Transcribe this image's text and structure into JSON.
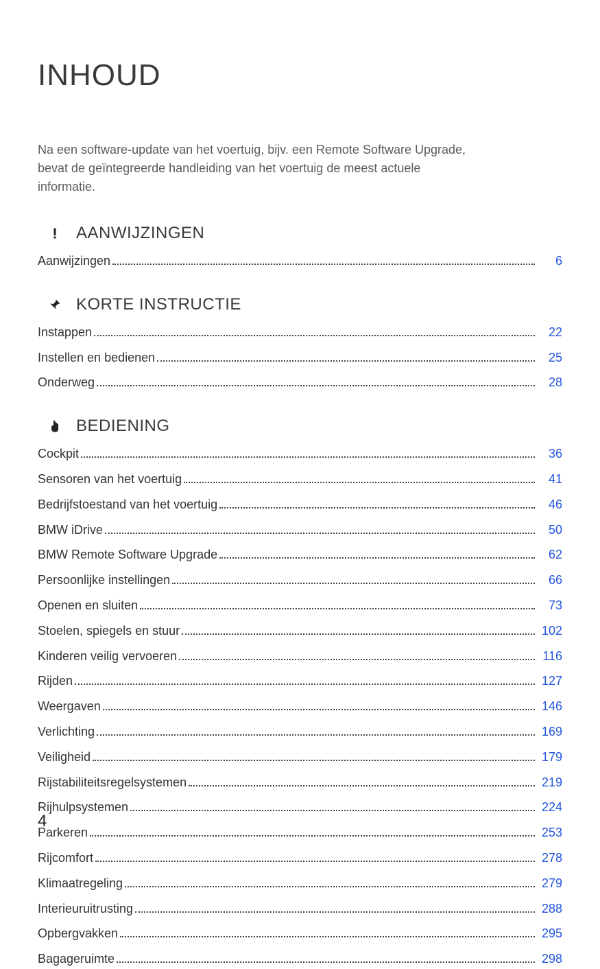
{
  "page_title": "INHOUD",
  "intro_text": "Na een software-update van het voertuig, bijv. een Remote Software Upgrade, bevat de geïntegreerde handleiding van het voertuig de meest actuele informatie.",
  "page_number": "4",
  "link_color": "#2255dd",
  "text_color": "#333333",
  "title_color": "#3a3a3a",
  "sections": [
    {
      "icon": "exclamation",
      "title": "AANWIJZINGEN",
      "entries": [
        {
          "label": "Aanwijzingen",
          "page": "6"
        }
      ]
    },
    {
      "icon": "pin",
      "title": "KORTE INSTRUCTIE",
      "entries": [
        {
          "label": "Instappen",
          "page": "22"
        },
        {
          "label": "Instellen en bedienen",
          "page": "25"
        },
        {
          "label": "Onderweg",
          "page": "28"
        }
      ]
    },
    {
      "icon": "hand",
      "title": "BEDIENING",
      "entries": [
        {
          "label": "Cockpit",
          "page": "36"
        },
        {
          "label": "Sensoren van het voertuig",
          "page": "41"
        },
        {
          "label": "Bedrijfstoestand van het voertuig",
          "page": "46"
        },
        {
          "label": "BMW iDrive",
          "page": "50"
        },
        {
          "label": "BMW Remote Software Upgrade",
          "page": "62"
        },
        {
          "label": "Persoonlijke instellingen",
          "page": "66"
        },
        {
          "label": "Openen en sluiten",
          "page": "73"
        },
        {
          "label": "Stoelen, spiegels en stuur",
          "page": "102"
        },
        {
          "label": "Kinderen veilig vervoeren",
          "page": "116"
        },
        {
          "label": "Rijden",
          "page": "127"
        },
        {
          "label": "Weergaven",
          "page": "146"
        },
        {
          "label": "Verlichting",
          "page": "169"
        },
        {
          "label": "Veiligheid",
          "page": "179"
        },
        {
          "label": "Rijstabiliteitsregelsystemen",
          "page": "219"
        },
        {
          "label": "Rijhulpsystemen",
          "page": "224"
        },
        {
          "label": "Parkeren",
          "page": "253"
        },
        {
          "label": "Rijcomfort",
          "page": "278"
        },
        {
          "label": "Klimaatregeling",
          "page": "279"
        },
        {
          "label": "Interieuruitrusting",
          "page": "288"
        },
        {
          "label": "Opbergvakken",
          "page": "295"
        },
        {
          "label": "Bagageruimte",
          "page": "298"
        }
      ]
    }
  ]
}
